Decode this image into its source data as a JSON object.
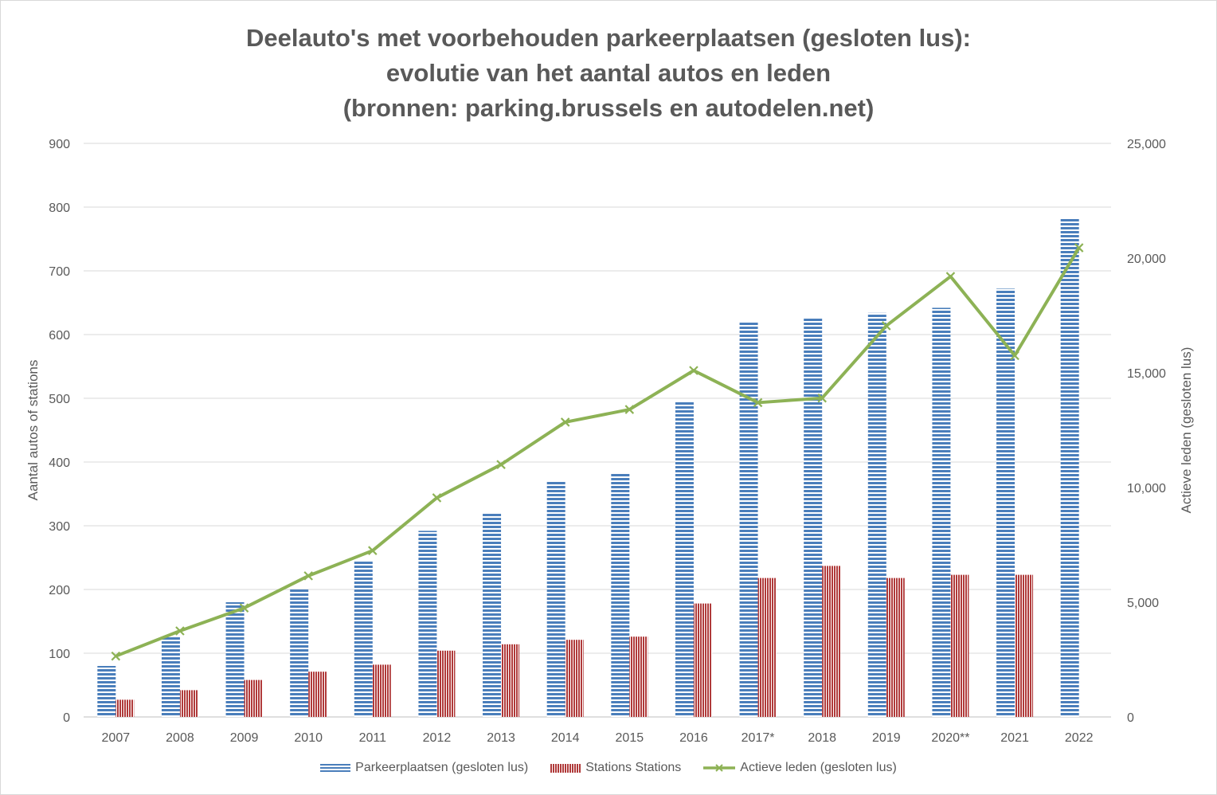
{
  "chart_data": {
    "type": "bar",
    "title_lines": [
      "Deelauto's met voorbehouden parkeerplaatsen (gesloten lus):",
      "evolutie van het aantal autos en leden",
      "(bronnen: parking.brussels en autodelen.net)"
    ],
    "categories": [
      "2007",
      "2008",
      "2009",
      "2010",
      "2011",
      "2012",
      "2013",
      "2014",
      "2015",
      "2016",
      "2017*",
      "2018",
      "2019",
      "2020**",
      "2021",
      "2022"
    ],
    "series": [
      {
        "name": "Parkeerplaatsen (gesloten lus)",
        "type": "bar",
        "axis": "left",
        "color": "#4a7ebb",
        "values": [
          80,
          125,
          180,
          200,
          245,
          292,
          321,
          370,
          382,
          495,
          619,
          626,
          634,
          642,
          672,
          783
        ]
      },
      {
        "name": "Stations Stations",
        "type": "bar",
        "axis": "left",
        "color": "#b03a3a",
        "values": [
          27,
          42,
          58,
          71,
          82,
          104,
          114,
          121,
          126,
          178,
          218,
          237,
          218,
          223,
          223,
          null
        ]
      },
      {
        "name": "Actieve leden (gesloten lus)",
        "type": "line",
        "axis": "right",
        "color": "#8db255",
        "values": [
          2650,
          3750,
          4750,
          6150,
          7250,
          9550,
          11000,
          12850,
          13400,
          15100,
          13700,
          13900,
          17050,
          19200,
          15750,
          20450
        ]
      }
    ],
    "ylabel": "Aantal autos of stations",
    "y2label": "Actieve leden (gesloten lus)",
    "ylim": [
      0,
      900
    ],
    "y2lim": [
      0,
      25000
    ],
    "yticks": [
      0,
      100,
      200,
      300,
      400,
      500,
      600,
      700,
      800,
      900
    ],
    "y2ticks": [
      0,
      5000,
      10000,
      15000,
      20000,
      25000
    ],
    "ytick_labels": [
      "0",
      "100",
      "200",
      "300",
      "400",
      "500",
      "600",
      "700",
      "800",
      "900"
    ],
    "y2tick_labels": [
      "0",
      "5,000",
      "10,000",
      "15,000",
      "20,000",
      "25,000"
    ],
    "grid": true,
    "legend_position": "bottom"
  }
}
